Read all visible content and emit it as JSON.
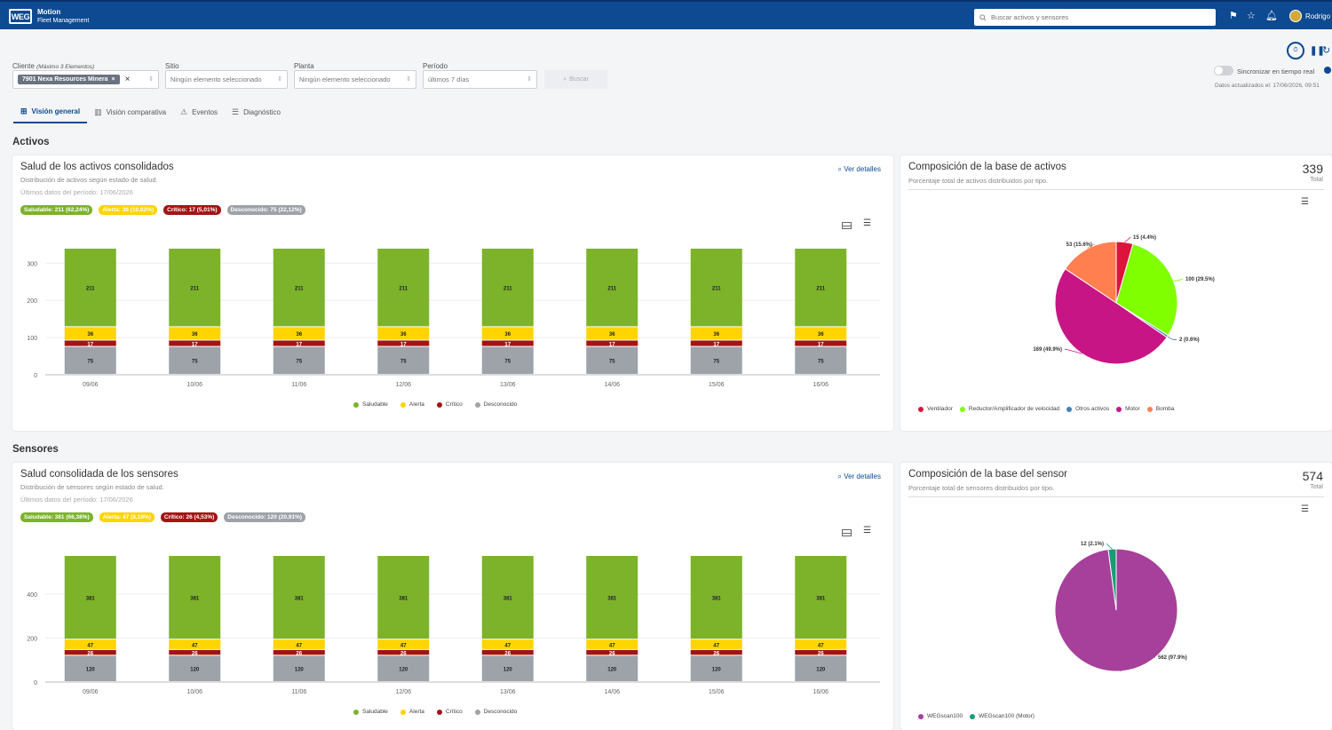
{
  "app": {
    "logo": "WEG",
    "name": "Motion",
    "subtitle": "Fleet Management",
    "search_placeholder": "Buscar activos y sensores",
    "user": "Rodrigo"
  },
  "controls": {
    "sync_label": "Sincronizar en tiempo real",
    "updated": "Datos actualizados el: 17/06/2026, 09:51"
  },
  "filters": {
    "client_label": "Cliente",
    "client_hint": "(Máximo 3 Elementos)",
    "client_chip": "7901 Nexa Resources Minera",
    "site_label": "Sitio",
    "site_value": "Ningún elemento seleccionado",
    "plant_label": "Planta",
    "plant_value": "Ningún elemento seleccionado",
    "period_label": "Período",
    "period_value": "últimos 7 días",
    "search_button": "Buscar"
  },
  "tabs": [
    {
      "label": "Visión general",
      "icon": "grid-icon",
      "active": true
    },
    {
      "label": "Visión comparativa",
      "icon": "bar-chart-icon",
      "active": false
    },
    {
      "label": "Eventos",
      "icon": "warning-icon",
      "active": false
    },
    {
      "label": "Diagnóstico",
      "icon": "list-check-icon",
      "active": false
    }
  ],
  "sections": {
    "assets": "Activos",
    "sensors": "Sensores"
  },
  "colors": {
    "healthy": "#7cb32a",
    "alert": "#ffd400",
    "critical": "#a31515",
    "unknown": "#9ea3aa",
    "brand": "#0d4a91"
  },
  "asset_health": {
    "title": "Salud de los activos consolidados",
    "subtitle": "Distribución de activos según estado de salud.",
    "date": "Últimos datos del período: 17/06/2026",
    "details": "Ver detalles",
    "badges": {
      "healthy": "Saludable: 211 (62,24%)",
      "alert": "Alerta: 36 (10,62%)",
      "critical": "Crítico: 17 (5,01%)",
      "unknown": "Desconocido: 75 (22,12%)"
    }
  },
  "sensor_health": {
    "title": "Salud consolidada de los sensores",
    "subtitle": "Distribución de sensores según estado de salud.",
    "date": "Últimos datos del período: 17/06/2026",
    "details": "Ver detalles",
    "badges": {
      "healthy": "Saludable: 381 (66,38%)",
      "alert": "Alerta: 47 (8,19%)",
      "critical": "Crítico: 26 (4,53%)",
      "unknown": "Desconocido: 120 (20,91%)"
    }
  },
  "asset_comp": {
    "title": "Composición de la base de activos",
    "subtitle": "Porcentaje total de activos distribuidos por tipo.",
    "total": "339",
    "total_label": "Total"
  },
  "sensor_comp": {
    "title": "Composición de la base del sensor",
    "subtitle": "Porcentaje total de sensores distribuidos por tipo.",
    "total": "574",
    "total_label": "Total"
  },
  "chart_data": [
    {
      "type": "bar",
      "stacked": true,
      "categories": [
        "09/06",
        "10/06",
        "11/06",
        "12/06",
        "13/06",
        "14/06",
        "15/06",
        "16/06"
      ],
      "ylim": [
        0,
        339
      ],
      "yticks": [
        0,
        100,
        200,
        300
      ],
      "series": [
        {
          "name": "Desconocido",
          "color": "#9ea3aa",
          "values": [
            75,
            75,
            75,
            75,
            75,
            75,
            75,
            75
          ]
        },
        {
          "name": "Crítico",
          "color": "#a31515",
          "values": [
            17,
            17,
            17,
            17,
            17,
            17,
            17,
            17
          ]
        },
        {
          "name": "Alerta",
          "color": "#ffd400",
          "values": [
            36,
            36,
            36,
            36,
            36,
            36,
            36,
            36
          ]
        },
        {
          "name": "Saludable",
          "color": "#7cb32a",
          "values": [
            211,
            211,
            211,
            211,
            211,
            211,
            211,
            211
          ]
        }
      ],
      "legend_order": [
        "Saludable",
        "Alerta",
        "Crítico",
        "Desconocido"
      ],
      "grid": true,
      "legend": "bottom"
    },
    {
      "type": "pie",
      "slices": [
        {
          "name": "Ventilador",
          "value": 15,
          "label": "15 (4.4%)",
          "color": "#dc143c"
        },
        {
          "name": "Reductor/Amplificador de velocidad",
          "value": 100,
          "label": "100 (29.5%)",
          "color": "#7fff00"
        },
        {
          "name": "Otros activos",
          "value": 2,
          "label": "2 (0.6%)",
          "color": "#4682b4"
        },
        {
          "name": "Motor",
          "value": 169,
          "label": "169 (49.9%)",
          "color": "#c71585"
        },
        {
          "name": "Bomba",
          "value": 53,
          "label": "53 (15.6%)",
          "color": "#ff7f50"
        }
      ],
      "legend": "bottom"
    },
    {
      "type": "bar",
      "stacked": true,
      "categories": [
        "09/06",
        "10/06",
        "11/06",
        "12/06",
        "13/06",
        "14/06",
        "15/06",
        "16/06"
      ],
      "ylim": [
        0,
        574
      ],
      "yticks": [
        0,
        200,
        400
      ],
      "series": [
        {
          "name": "Desconocido",
          "color": "#9ea3aa",
          "values": [
            120,
            120,
            120,
            120,
            120,
            120,
            120,
            120
          ]
        },
        {
          "name": "Crítico",
          "color": "#a31515",
          "values": [
            26,
            26,
            26,
            26,
            26,
            26,
            26,
            26
          ]
        },
        {
          "name": "Alerta",
          "color": "#ffd400",
          "values": [
            47,
            47,
            47,
            47,
            47,
            47,
            47,
            47
          ]
        },
        {
          "name": "Saludable",
          "color": "#7cb32a",
          "values": [
            381,
            381,
            381,
            381,
            381,
            381,
            381,
            381
          ]
        }
      ],
      "legend_order": [
        "Saludable",
        "Alerta",
        "Crítico",
        "Desconocido"
      ],
      "grid": true,
      "legend": "bottom"
    },
    {
      "type": "pie",
      "slices": [
        {
          "name": "WEGscan100",
          "value": 562,
          "label": "562 (97.9%)",
          "color": "#a6409a"
        },
        {
          "name": "WEGscan100 (Motor)",
          "value": 12,
          "label": "12 (2.1%)",
          "color": "#1a9b75"
        }
      ],
      "legend": "bottom"
    }
  ]
}
